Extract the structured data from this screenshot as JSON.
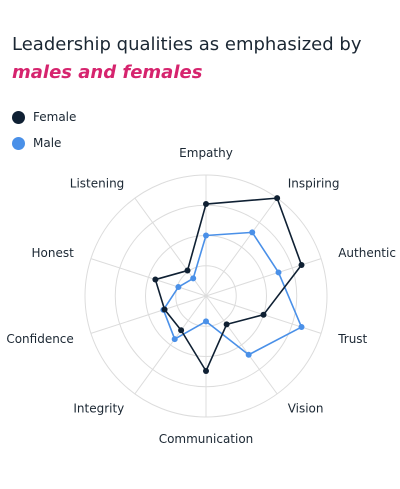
{
  "title": {
    "line1": "Leadership qualities as emphasized by",
    "line2": "males and females"
  },
  "colors": {
    "female": "#0f2033",
    "male": "#4a90e8",
    "accent": "#d6246e",
    "grid": "#dcdcdc"
  },
  "legend": [
    {
      "label": "Female",
      "color": "#0f2033"
    },
    {
      "label": "Male",
      "color": "#4a90e8"
    }
  ],
  "chart_data": {
    "type": "radar",
    "categories": [
      "Empathy",
      "Inspiring",
      "Authentic",
      "Trust",
      "Vision",
      "Communication",
      "Integrity",
      "Confidence",
      "Honest",
      "Listening"
    ],
    "series": [
      {
        "name": "Female",
        "color": "#0f2033",
        "values": [
          76,
          100,
          83,
          50,
          29,
          62,
          35,
          36,
          44,
          26
        ]
      },
      {
        "name": "Male",
        "color": "#4a90e8",
        "values": [
          50,
          65,
          63,
          83,
          60,
          21,
          44,
          37,
          24,
          18
        ]
      }
    ],
    "rlim": [
      0,
      100
    ],
    "grid": true,
    "legend_position": "top-left"
  }
}
